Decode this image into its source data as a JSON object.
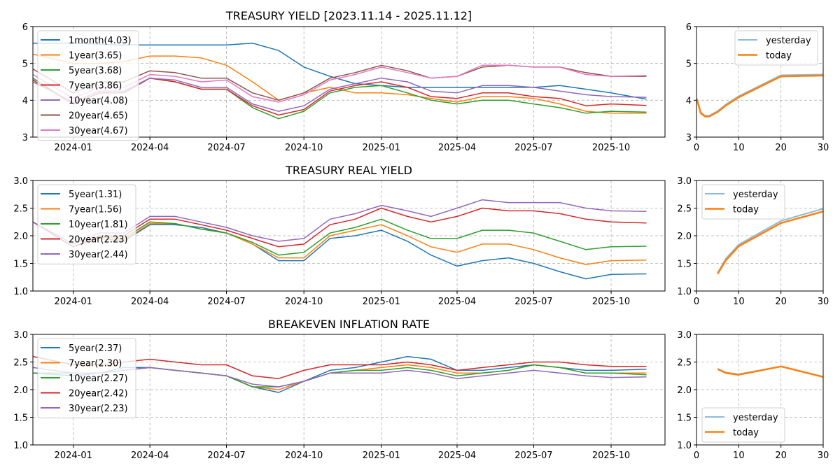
{
  "chart_data": [
    {
      "type": "line",
      "title": "TREASURY YIELD [2023.11.14 - 2025.11.12]",
      "ylim": [
        3,
        6
      ],
      "yticks": [
        "3",
        "4",
        "5",
        "6"
      ],
      "xlim": [
        "2023-11-14",
        "2025-12-04"
      ],
      "xticks": [
        "2024-01",
        "2024-04",
        "2024-07",
        "2024-10",
        "2025-01",
        "2025-04",
        "2025-07",
        "2025-10"
      ],
      "grid": true,
      "legend_position": "upper-left",
      "x": [
        "2023-11-14",
        "2024-01-01",
        "2024-02-01",
        "2024-03-01",
        "2024-04-01",
        "2024-05-01",
        "2024-06-01",
        "2024-07-01",
        "2024-08-01",
        "2024-09-01",
        "2024-10-01",
        "2024-11-01",
        "2024-12-01",
        "2025-01-01",
        "2025-02-01",
        "2025-03-01",
        "2025-04-01",
        "2025-05-01",
        "2025-06-01",
        "2025-07-01",
        "2025-08-01",
        "2025-09-01",
        "2025-10-01",
        "2025-11-12"
      ],
      "series": [
        {
          "name": "1month(4.03)",
          "color": "#1f77b4",
          "values": [
            5.55,
            5.55,
            5.52,
            5.5,
            5.5,
            5.5,
            5.5,
            5.5,
            5.55,
            5.35,
            4.9,
            4.65,
            4.45,
            4.4,
            4.35,
            4.35,
            4.35,
            4.35,
            4.35,
            4.35,
            4.4,
            4.3,
            4.2,
            4.03
          ]
        },
        {
          "name": "1year(3.65)",
          "color": "#ff7f0e",
          "values": [
            5.25,
            5.0,
            5.0,
            5.05,
            5.2,
            5.2,
            5.15,
            4.95,
            4.5,
            4.0,
            4.2,
            4.35,
            4.2,
            4.2,
            4.15,
            4.05,
            3.95,
            4.1,
            4.1,
            4.05,
            3.9,
            3.7,
            3.65,
            3.65
          ]
        },
        {
          "name": "5year(3.68)",
          "color": "#2ca02c",
          "values": [
            4.6,
            3.9,
            4.2,
            4.2,
            4.6,
            4.5,
            4.3,
            4.3,
            3.8,
            3.5,
            3.7,
            4.2,
            4.35,
            4.4,
            4.2,
            4.0,
            3.9,
            4.0,
            4.0,
            3.9,
            3.8,
            3.65,
            3.7,
            3.68
          ]
        },
        {
          "name": "7year(3.86)",
          "color": "#d62728",
          "values": [
            4.55,
            3.9,
            4.2,
            4.2,
            4.6,
            4.5,
            4.3,
            4.3,
            3.85,
            3.6,
            3.75,
            4.25,
            4.4,
            4.5,
            4.35,
            4.1,
            4.05,
            4.2,
            4.2,
            4.1,
            4.05,
            3.85,
            3.9,
            3.86
          ]
        },
        {
          "name": "10year(4.08)",
          "color": "#9467bd",
          "values": [
            4.5,
            3.95,
            4.25,
            4.25,
            4.6,
            4.55,
            4.35,
            4.35,
            3.9,
            3.7,
            3.85,
            4.3,
            4.45,
            4.6,
            4.5,
            4.25,
            4.2,
            4.4,
            4.4,
            4.35,
            4.25,
            4.15,
            4.1,
            4.08
          ]
        },
        {
          "name": "20year(4.65)",
          "color": "#8c564b",
          "values": [
            4.85,
            4.2,
            4.5,
            4.5,
            4.8,
            4.75,
            4.6,
            4.6,
            4.2,
            4.0,
            4.2,
            4.6,
            4.75,
            4.95,
            4.8,
            4.6,
            4.65,
            4.9,
            4.95,
            4.9,
            4.9,
            4.75,
            4.65,
            4.65
          ]
        },
        {
          "name": "30year(4.67)",
          "color": "#e377c2",
          "values": [
            4.7,
            4.05,
            4.35,
            4.35,
            4.7,
            4.65,
            4.5,
            4.55,
            4.1,
            3.95,
            4.15,
            4.55,
            4.7,
            4.9,
            4.75,
            4.6,
            4.65,
            4.95,
            4.95,
            4.9,
            4.9,
            4.7,
            4.65,
            4.67
          ]
        }
      ]
    },
    {
      "type": "line",
      "title": "",
      "ylim": [
        3,
        6
      ],
      "yticks": [
        "3",
        "4",
        "5",
        "6"
      ],
      "xlim": [
        0,
        30
      ],
      "xticks": [
        "0",
        "10",
        "20",
        "30"
      ],
      "grid": true,
      "legend_position": "upper-right",
      "x": [
        0.083,
        1,
        2,
        3,
        5,
        7,
        10,
        20,
        30
      ],
      "series": [
        {
          "name": "yesterday",
          "color": "#8fbbd9",
          "values": [
            4.05,
            3.68,
            3.58,
            3.58,
            3.71,
            3.89,
            4.11,
            4.68,
            4.7
          ]
        },
        {
          "name": "today",
          "color": "#ff7f0e",
          "values": [
            4.03,
            3.65,
            3.56,
            3.56,
            3.68,
            3.86,
            4.08,
            4.65,
            4.67
          ]
        }
      ]
    },
    {
      "type": "line",
      "title": "TREASURY REAL YIELD",
      "ylim": [
        1,
        3
      ],
      "yticks": [
        "1.0",
        "1.5",
        "2.0",
        "2.5",
        "3.0"
      ],
      "xlim": [
        "2023-11-14",
        "2025-12-04"
      ],
      "xticks": [
        "2024-01",
        "2024-04",
        "2024-07",
        "2024-10",
        "2025-01",
        "2025-04",
        "2025-07",
        "2025-10"
      ],
      "grid": true,
      "legend_position": "upper-left",
      "x": [
        "2023-11-14",
        "2024-01-01",
        "2024-02-01",
        "2024-03-01",
        "2024-04-01",
        "2024-05-01",
        "2024-06-01",
        "2024-07-01",
        "2024-08-01",
        "2024-09-01",
        "2024-10-01",
        "2024-11-01",
        "2024-12-01",
        "2025-01-01",
        "2025-02-01",
        "2025-03-01",
        "2025-04-01",
        "2025-05-01",
        "2025-06-01",
        "2025-07-01",
        "2025-08-01",
        "2025-09-01",
        "2025-10-01",
        "2025-11-12"
      ],
      "series": [
        {
          "name": "5year(1.31)",
          "color": "#1f77b4",
          "values": [
            2.25,
            1.8,
            1.95,
            1.9,
            2.2,
            2.2,
            2.15,
            2.05,
            1.85,
            1.55,
            1.55,
            1.95,
            2.0,
            2.1,
            1.9,
            1.65,
            1.45,
            1.55,
            1.6,
            1.5,
            1.35,
            1.22,
            1.3,
            1.31
          ]
        },
        {
          "name": "7year(1.56)",
          "color": "#ff7f0e",
          "values": [
            2.25,
            1.8,
            1.95,
            1.92,
            2.22,
            2.22,
            2.12,
            2.05,
            1.85,
            1.6,
            1.6,
            2.0,
            2.1,
            2.2,
            2.0,
            1.8,
            1.7,
            1.85,
            1.85,
            1.75,
            1.6,
            1.48,
            1.55,
            1.56
          ]
        },
        {
          "name": "10year(1.81)",
          "color": "#2ca02c",
          "values": [
            2.25,
            1.8,
            1.98,
            1.95,
            2.25,
            2.22,
            2.12,
            2.05,
            1.88,
            1.65,
            1.7,
            2.05,
            2.15,
            2.3,
            2.1,
            1.95,
            1.95,
            2.1,
            2.1,
            2.05,
            1.9,
            1.75,
            1.8,
            1.81
          ]
        },
        {
          "name": "20year(2.23)",
          "color": "#d62728",
          "values": [
            2.25,
            1.8,
            2.0,
            2.0,
            2.3,
            2.3,
            2.2,
            2.1,
            1.95,
            1.8,
            1.85,
            2.2,
            2.3,
            2.5,
            2.35,
            2.25,
            2.35,
            2.5,
            2.45,
            2.45,
            2.4,
            2.3,
            2.25,
            2.23
          ]
        },
        {
          "name": "30year(2.44)",
          "color": "#9467bd",
          "values": [
            2.25,
            1.85,
            2.05,
            2.05,
            2.35,
            2.35,
            2.25,
            2.15,
            2.0,
            1.9,
            1.95,
            2.3,
            2.4,
            2.55,
            2.45,
            2.35,
            2.5,
            2.65,
            2.6,
            2.6,
            2.6,
            2.5,
            2.45,
            2.44
          ]
        }
      ]
    },
    {
      "type": "line",
      "title": "",
      "ylim": [
        1,
        3
      ],
      "yticks": [
        "1.0",
        "1.5",
        "2.0",
        "2.5",
        "3.0"
      ],
      "xlim": [
        0,
        30
      ],
      "xticks": [
        "0",
        "10",
        "20",
        "30"
      ],
      "grid": true,
      "legend_position": "upper-left",
      "x": [
        5,
        7,
        10,
        20,
        30
      ],
      "series": [
        {
          "name": "yesterday",
          "color": "#8fbbd9",
          "values": [
            1.33,
            1.59,
            1.84,
            2.27,
            2.49
          ]
        },
        {
          "name": "today",
          "color": "#ff7f0e",
          "values": [
            1.31,
            1.56,
            1.81,
            2.23,
            2.44
          ]
        }
      ]
    },
    {
      "type": "line",
      "title": "BREAKEVEN INFLATION RATE",
      "ylim": [
        1,
        3
      ],
      "yticks": [
        "1.0",
        "1.5",
        "2.0",
        "2.5",
        "3.0"
      ],
      "xlim": [
        "2023-11-14",
        "2025-12-04"
      ],
      "xticks": [
        "2024-01",
        "2024-04",
        "2024-07",
        "2024-10",
        "2025-01",
        "2025-04",
        "2025-07",
        "2025-10"
      ],
      "grid": true,
      "legend_position": "upper-left",
      "x": [
        "2023-11-14",
        "2024-01-01",
        "2024-02-01",
        "2024-03-01",
        "2024-04-01",
        "2024-05-01",
        "2024-06-01",
        "2024-07-01",
        "2024-08-01",
        "2024-09-01",
        "2024-10-01",
        "2024-11-01",
        "2024-12-01",
        "2025-01-01",
        "2025-02-01",
        "2025-03-01",
        "2025-04-01",
        "2025-05-01",
        "2025-06-01",
        "2025-07-01",
        "2025-08-01",
        "2025-09-01",
        "2025-10-01",
        "2025-11-12"
      ],
      "series": [
        {
          "name": "5year(2.37)",
          "color": "#1f77b4",
          "values": [
            2.3,
            2.25,
            2.3,
            2.4,
            2.4,
            2.35,
            2.3,
            2.25,
            2.05,
            1.95,
            2.15,
            2.35,
            2.4,
            2.5,
            2.6,
            2.55,
            2.35,
            2.35,
            2.4,
            2.45,
            2.4,
            2.35,
            2.35,
            2.37
          ]
        },
        {
          "name": "7year(2.30)",
          "color": "#ff7f0e",
          "values": [
            2.3,
            2.3,
            2.3,
            2.35,
            2.4,
            2.35,
            2.3,
            2.25,
            2.05,
            2.0,
            2.15,
            2.3,
            2.35,
            2.4,
            2.45,
            2.4,
            2.3,
            2.3,
            2.35,
            2.45,
            2.4,
            2.3,
            2.3,
            2.3
          ]
        },
        {
          "name": "10year(2.27)",
          "color": "#2ca02c",
          "values": [
            2.3,
            2.3,
            2.3,
            2.35,
            2.4,
            2.35,
            2.3,
            2.25,
            2.05,
            2.05,
            2.15,
            2.3,
            2.35,
            2.35,
            2.4,
            2.35,
            2.25,
            2.3,
            2.35,
            2.45,
            2.4,
            2.3,
            2.3,
            2.27
          ]
        },
        {
          "name": "20year(2.42)",
          "color": "#d62728",
          "values": [
            2.6,
            2.45,
            2.45,
            2.5,
            2.55,
            2.5,
            2.45,
            2.45,
            2.25,
            2.2,
            2.35,
            2.45,
            2.45,
            2.45,
            2.5,
            2.45,
            2.35,
            2.4,
            2.45,
            2.5,
            2.5,
            2.45,
            2.42,
            2.42
          ]
        },
        {
          "name": "30year(2.23)",
          "color": "#9467bd",
          "values": [
            2.4,
            2.3,
            2.3,
            2.35,
            2.4,
            2.35,
            2.3,
            2.25,
            2.1,
            2.05,
            2.15,
            2.3,
            2.3,
            2.3,
            2.35,
            2.3,
            2.2,
            2.25,
            2.3,
            2.35,
            2.3,
            2.25,
            2.22,
            2.23
          ]
        }
      ]
    },
    {
      "type": "line",
      "title": "",
      "ylim": [
        1,
        3
      ],
      "yticks": [
        "1.0",
        "1.5",
        "2.0",
        "2.5",
        "3.0"
      ],
      "xlim": [
        0,
        30
      ],
      "xticks": [
        "0",
        "10",
        "20",
        "30"
      ],
      "grid": true,
      "legend_position": "lower-left",
      "x": [
        5,
        7,
        10,
        20,
        30
      ],
      "series": [
        {
          "name": "yesterday",
          "color": "#8fbbd9",
          "values": [
            2.38,
            2.31,
            2.28,
            2.42,
            2.23
          ]
        },
        {
          "name": "today",
          "color": "#ff7f0e",
          "values": [
            2.37,
            2.3,
            2.27,
            2.42,
            2.23
          ]
        }
      ]
    }
  ]
}
